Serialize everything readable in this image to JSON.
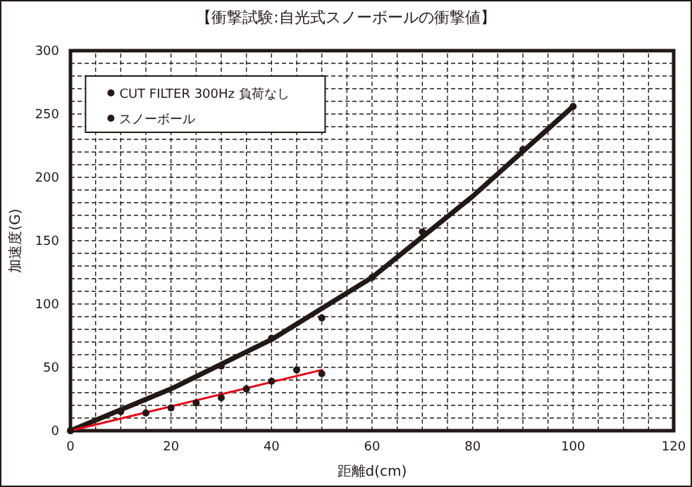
{
  "chart_data": {
    "type": "scatter",
    "title": "【衝撃試験:自光式スノーボールの衝撃値】",
    "xlabel": "距離d(cm)",
    "ylabel": "加速度(G)",
    "xlim": [
      0,
      120
    ],
    "ylim": [
      0,
      300
    ],
    "xticks": [
      0,
      {
        "value": 5,
        "label": null
      },
      {
        "value": 10,
        "label": null
      },
      {
        "value": 15,
        "label": null
      },
      20,
      {
        "value": 25,
        "label": null
      },
      {
        "value": 30,
        "label": null
      },
      {
        "value": 35,
        "label": null
      },
      40,
      {
        "value": 45,
        "label": null
      },
      {
        "value": 50,
        "label": null
      },
      {
        "value": 55,
        "label": null
      },
      60,
      {
        "value": 65,
        "label": null
      },
      {
        "value": 70,
        "label": null
      },
      {
        "value": 75,
        "label": null
      },
      80,
      {
        "value": 85,
        "label": null
      },
      {
        "value": 90,
        "label": null
      },
      {
        "value": 95,
        "label": null
      },
      100,
      {
        "value": 105,
        "label": null
      },
      {
        "value": 110,
        "label": null
      },
      {
        "value": 115,
        "label": null
      },
      120
    ],
    "yticks": [
      0,
      {
        "value": 10,
        "label": null
      },
      {
        "value": 20,
        "label": null
      },
      {
        "value": 30,
        "label": null
      },
      {
        "value": 40,
        "label": null
      },
      50,
      {
        "value": 60,
        "label": null
      },
      {
        "value": 70,
        "label": null
      },
      {
        "value": 80,
        "label": null
      },
      {
        "value": 90,
        "label": null
      },
      100,
      {
        "value": 110,
        "label": null
      },
      {
        "value": 120,
        "label": null
      },
      {
        "value": 130,
        "label": null
      },
      {
        "value": 140,
        "label": null
      },
      150,
      {
        "value": 160,
        "label": null
      },
      {
        "value": 170,
        "label": null
      },
      {
        "value": 180,
        "label": null
      },
      {
        "value": 190,
        "label": null
      },
      200,
      {
        "value": 210,
        "label": null
      },
      {
        "value": 220,
        "label": null
      },
      {
        "value": 230,
        "label": null
      },
      {
        "value": 240,
        "label": null
      },
      250,
      {
        "value": 260,
        "label": null
      },
      {
        "value": 270,
        "label": null
      },
      {
        "value": 280,
        "label": null
      },
      {
        "value": 290,
        "label": null
      },
      300
    ],
    "grid": true,
    "legend": "top left",
    "marker": "circle",
    "series": [
      {
        "type": "line",
        "color": "#231815",
        "marker": "none",
        "line_style": "solid",
        "x": [
          0,
          20,
          40,
          60,
          80,
          100
        ],
        "values": [
          0,
          33,
          72,
          121,
          185,
          256
        ]
      },
      {
        "type": "line",
        "color": "#e60012",
        "marker": "none",
        "line_style": "solid",
        "x": [
          0,
          50
        ],
        "values": [
          0,
          48
        ]
      },
      {
        "name": "CUT FILTER 300Hz 負荷なし",
        "color": "#231815",
        "x": [
          0,
          10,
          30,
          40,
          50,
          60,
          70,
          90,
          100
        ],
        "values": [
          0,
          15,
          51,
          73,
          89,
          121,
          157,
          222,
          256
        ]
      },
      {
        "name": "スノーボール",
        "color": "#231815",
        "x": [
          0,
          15,
          20,
          25,
          30,
          35,
          40,
          45,
          50
        ],
        "values": [
          0,
          14,
          18,
          22,
          26,
          33,
          39,
          48,
          45
        ]
      }
    ]
  }
}
